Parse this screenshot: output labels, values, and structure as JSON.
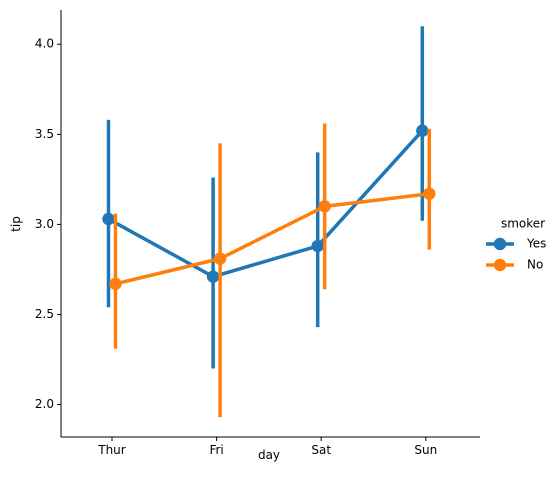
{
  "chart_data": {
    "type": "line",
    "subtype": "pointplot",
    "xlabel": "day",
    "ylabel": "tip",
    "categories": [
      "Thur",
      "Fri",
      "Sat",
      "Sun"
    ],
    "ylim": [
      1.82,
      4.19
    ],
    "yticks": [
      2.0,
      2.5,
      3.0,
      3.5,
      4.0
    ],
    "ytick_labels": [
      "2.0",
      "2.5",
      "3.0",
      "3.5",
      "4.0"
    ],
    "grid": false,
    "legend": {
      "title": "smoker",
      "placement": "right"
    },
    "series": [
      {
        "name": "Yes",
        "color": "#1f77b4",
        "values": [
          3.03,
          2.71,
          2.88,
          3.52
        ],
        "ci_low": [
          2.54,
          2.2,
          2.43,
          3.02
        ],
        "ci_high": [
          3.58,
          3.26,
          3.4,
          4.1
        ]
      },
      {
        "name": "No",
        "color": "#ff7f0e",
        "values": [
          2.67,
          2.81,
          3.1,
          3.17
        ],
        "ci_low": [
          2.31,
          1.93,
          2.64,
          2.86
        ],
        "ci_high": [
          3.06,
          3.45,
          3.56,
          3.53
        ]
      }
    ]
  }
}
